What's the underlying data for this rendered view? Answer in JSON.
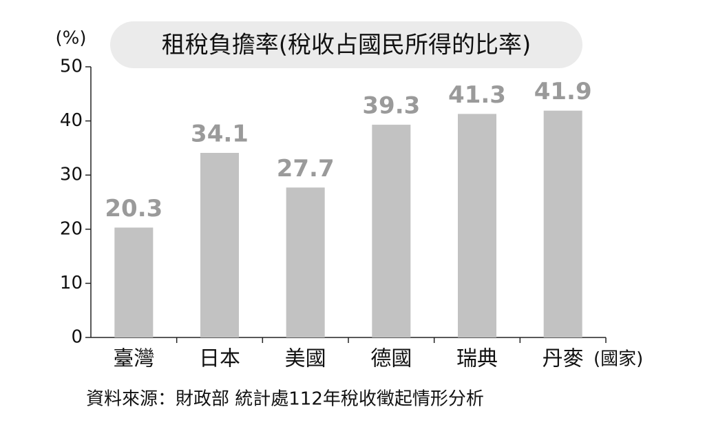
{
  "chart_data": {
    "type": "bar",
    "title": "租稅負擔率(稅收占國民所得的比率)",
    "y_label": "(%)",
    "x_label": "(國家)",
    "source": "資料來源：財政部 統計處112年稅收徵起情形分析",
    "categories": [
      "臺灣",
      "日本",
      "美國",
      "德國",
      "瑞典",
      "丹麥"
    ],
    "values": [
      20.3,
      34.1,
      27.7,
      39.3,
      41.3,
      41.9
    ],
    "color": "#c2c2c2",
    "ylim": [
      0,
      50
    ],
    "yticks": [
      0,
      10,
      20,
      30,
      40,
      50
    ]
  }
}
